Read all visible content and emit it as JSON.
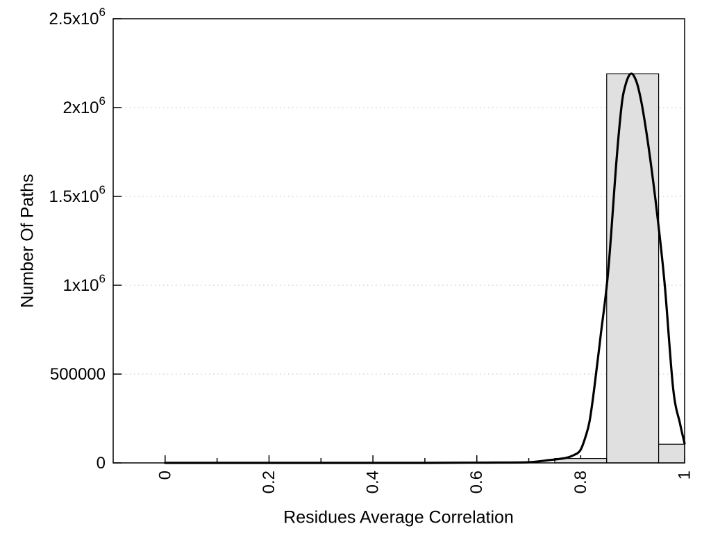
{
  "figure": {
    "background": "#ffffff",
    "axis_color": "#000000",
    "grid_color": "#bdbdbd",
    "bar_fill": "#e0e0e0",
    "bar_stroke": "#000000",
    "curve_color": "#000000"
  },
  "chart_data": {
    "type": "bar",
    "title": "",
    "xlabel": "Residues Average Correlation",
    "ylabel": "Number Of Paths",
    "xlim": [
      -0.1,
      1.0
    ],
    "ylim": [
      0,
      2500000
    ],
    "grid": "horizontal-dotted",
    "legend": "none",
    "x_tick_label_rotation": -90,
    "x_major_ticks": [
      0,
      0.2,
      0.4,
      0.6,
      0.8,
      1
    ],
    "x_major_tick_labels": [
      "0",
      "0.2",
      "0.4",
      "0.6",
      "0.8",
      "1"
    ],
    "x_minor_ticks": [
      0.1,
      0.3,
      0.5,
      0.7,
      0.9
    ],
    "y_ticks": [
      {
        "value": 2500000,
        "label": "2.5x10",
        "sup": "6"
      },
      {
        "value": 2000000,
        "label": "2x10",
        "sup": "6"
      },
      {
        "value": 1500000,
        "label": "1.5x10",
        "sup": "6"
      },
      {
        "value": 1000000,
        "label": "1x10",
        "sup": "6"
      },
      {
        "value": 500000,
        "label": "500000",
        "sup": ""
      },
      {
        "value": 0,
        "label": "0",
        "sup": ""
      }
    ],
    "bars": {
      "bin_width": 0.1,
      "bins": [
        {
          "center": 0.8,
          "x0": 0.75,
          "x1": 0.85,
          "count": 25000
        },
        {
          "center": 0.9,
          "x0": 0.85,
          "x1": 0.95,
          "count": 2190000
        },
        {
          "center": 1.0,
          "x0": 0.95,
          "x1": 1.0,
          "count": 105000
        }
      ]
    },
    "curve": {
      "name": "gaussian-fit-curve",
      "points": [
        [
          0.0,
          0
        ],
        [
          0.1,
          0
        ],
        [
          0.2,
          0
        ],
        [
          0.3,
          0
        ],
        [
          0.4,
          0
        ],
        [
          0.5,
          0
        ],
        [
          0.58,
          1000
        ],
        [
          0.64,
          2000
        ],
        [
          0.7,
          4000
        ],
        [
          0.74,
          16000
        ],
        [
          0.77,
          27000
        ],
        [
          0.786,
          43000
        ],
        [
          0.799,
          70000
        ],
        [
          0.809,
          145000
        ],
        [
          0.817,
          234000
        ],
        [
          0.826,
          418000
        ],
        [
          0.839,
          730000
        ],
        [
          0.853,
          1082000
        ],
        [
          0.869,
          1707000
        ],
        [
          0.879,
          2020000
        ],
        [
          0.886,
          2125000
        ],
        [
          0.893,
          2180000
        ],
        [
          0.898,
          2191000
        ],
        [
          0.903,
          2175000
        ],
        [
          0.91,
          2120000
        ],
        [
          0.92,
          1980000
        ],
        [
          0.934,
          1707000
        ],
        [
          0.949,
          1355000
        ],
        [
          0.962,
          992000
        ],
        [
          0.978,
          418000
        ],
        [
          0.991,
          223000
        ],
        [
          1.0,
          109000
        ]
      ]
    }
  }
}
